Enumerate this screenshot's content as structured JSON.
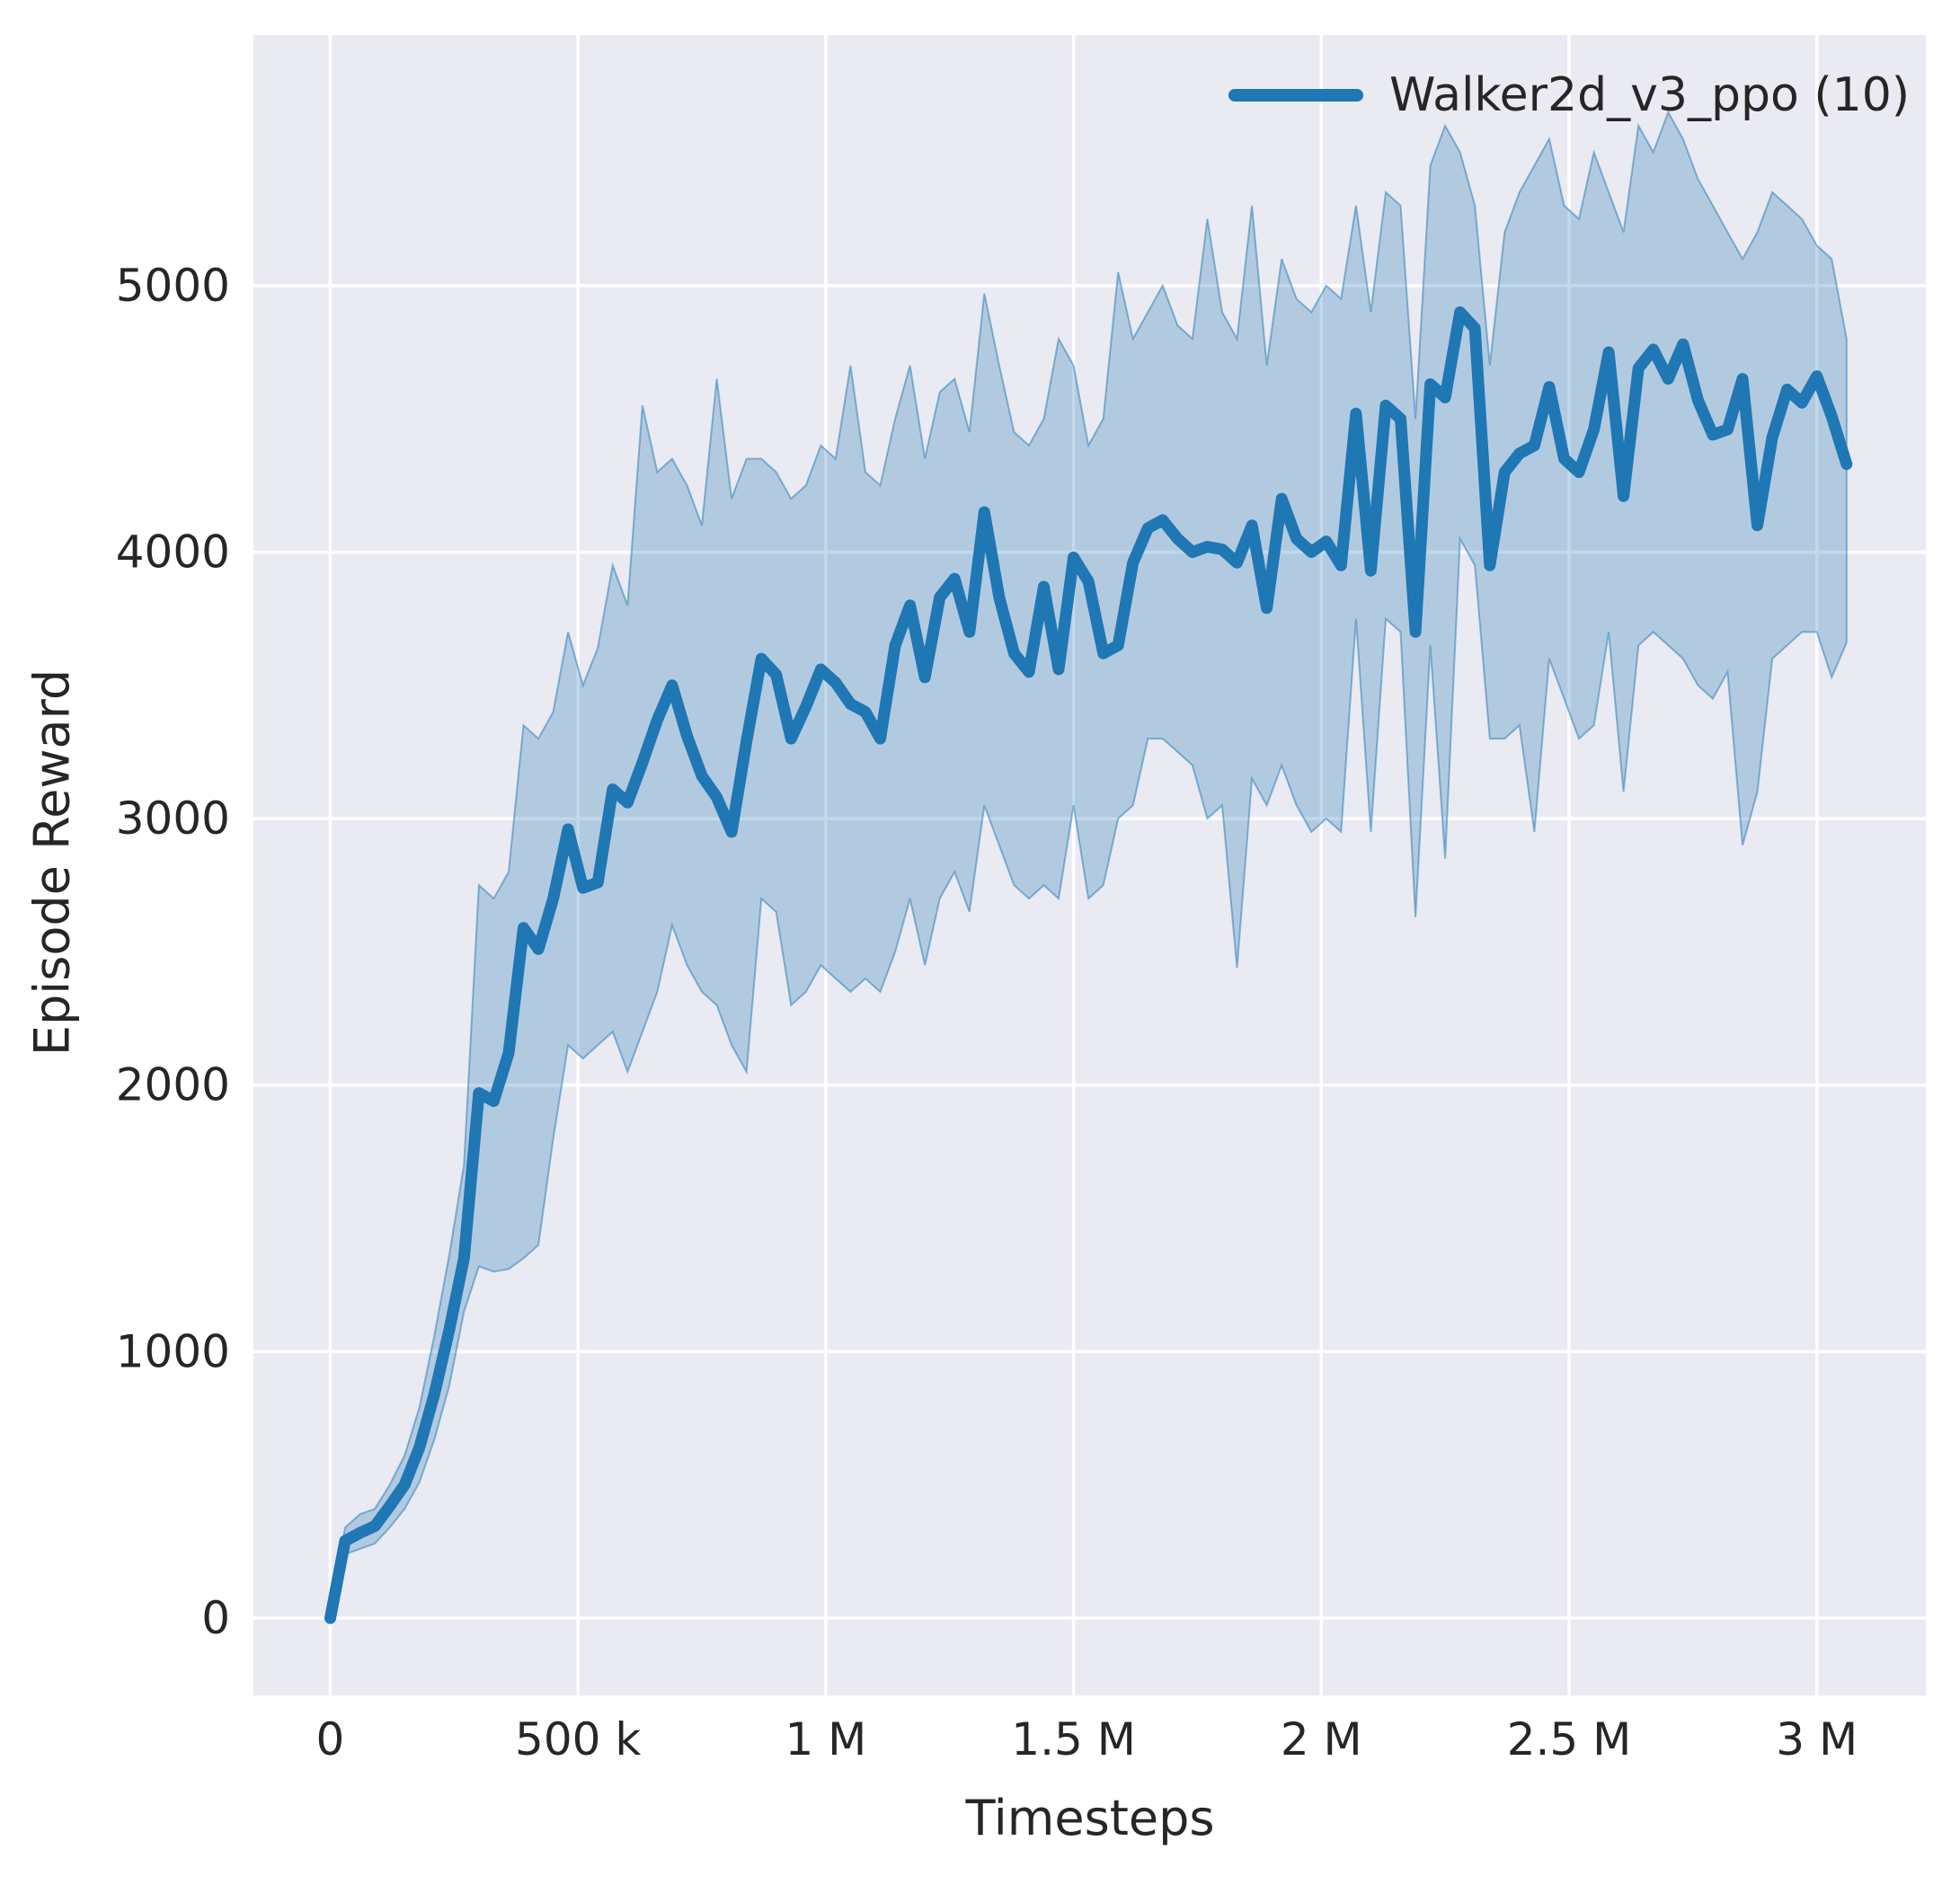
{
  "figure": {
    "background": "#ffffff",
    "text_color": "#262626"
  },
  "chart_data": {
    "type": "line",
    "title": "",
    "xlabel": "Timesteps",
    "ylabel": "Episode Reward",
    "grid": true,
    "background": "#eaeaf2",
    "grid_color": "#ffffff",
    "legend_position": "upper right",
    "xlim_m": [
      -0.155,
      3.22
    ],
    "ylim": [
      -290,
      5940
    ],
    "x_ticks": [
      {
        "value": 0,
        "label": "0"
      },
      {
        "value": 0.5,
        "label": "500 k"
      },
      {
        "value": 1,
        "label": "1 M"
      },
      {
        "value": 1.5,
        "label": "1.5 M"
      },
      {
        "value": 2,
        "label": "2 M"
      },
      {
        "value": 2.5,
        "label": "2.5 M"
      },
      {
        "value": 3,
        "label": "3 M"
      }
    ],
    "y_ticks": [
      {
        "value": 0,
        "label": "0"
      },
      {
        "value": 1000,
        "label": "1000"
      },
      {
        "value": 2000,
        "label": "2000"
      },
      {
        "value": 3000,
        "label": "3000"
      },
      {
        "value": 4000,
        "label": "4000"
      },
      {
        "value": 5000,
        "label": "5000"
      }
    ],
    "series": [
      {
        "name": "Walker2d_v3_ppo (10)",
        "color": "#1f77b4",
        "band_alpha": 0.28,
        "x_m": [
          0.0,
          0.03,
          0.06,
          0.09,
          0.12,
          0.15,
          0.18,
          0.21,
          0.24,
          0.27,
          0.3,
          0.33,
          0.36,
          0.39,
          0.42,
          0.45,
          0.48,
          0.51,
          0.54,
          0.57,
          0.6,
          0.63,
          0.66,
          0.69,
          0.72,
          0.75,
          0.78,
          0.81,
          0.84,
          0.87,
          0.9,
          0.93,
          0.96,
          0.99,
          1.02,
          1.05,
          1.08,
          1.11,
          1.14,
          1.17,
          1.2,
          1.23,
          1.26,
          1.29,
          1.32,
          1.35,
          1.38,
          1.41,
          1.44,
          1.47,
          1.5,
          1.53,
          1.56,
          1.59,
          1.62,
          1.65,
          1.68,
          1.71,
          1.74,
          1.77,
          1.8,
          1.83,
          1.86,
          1.89,
          1.92,
          1.95,
          1.98,
          2.01,
          2.04,
          2.07,
          2.1,
          2.13,
          2.16,
          2.19,
          2.22,
          2.25,
          2.28,
          2.31,
          2.34,
          2.37,
          2.4,
          2.43,
          2.46,
          2.49,
          2.52,
          2.55,
          2.58,
          2.61,
          2.64,
          2.67,
          2.7,
          2.73,
          2.76,
          2.79,
          2.82,
          2.85,
          2.88,
          2.91,
          2.94,
          2.97,
          3.0,
          3.03,
          3.06
        ],
        "mean": [
          0,
          290,
          320,
          345,
          420,
          500,
          640,
          840,
          1080,
          1350,
          1970,
          1940,
          2120,
          2590,
          2510,
          2700,
          2960,
          2740,
          2760,
          3110,
          3060,
          3210,
          3370,
          3500,
          3310,
          3160,
          3080,
          2950,
          3290,
          3600,
          3540,
          3300,
          3420,
          3560,
          3510,
          3430,
          3400,
          3300,
          3650,
          3800,
          3530,
          3830,
          3900,
          3700,
          4150,
          3830,
          3620,
          3550,
          3870,
          3560,
          3980,
          3890,
          3620,
          3650,
          3960,
          4090,
          4120,
          4050,
          4000,
          4020,
          4010,
          3960,
          4100,
          3790,
          4200,
          4050,
          4000,
          4040,
          3950,
          4520,
          3930,
          4550,
          4500,
          3700,
          4630,
          4580,
          4900,
          4840,
          3950,
          4300,
          4370,
          4400,
          4620,
          4350,
          4300,
          4460,
          4750,
          4210,
          4690,
          4760,
          4650,
          4780,
          4570,
          4440,
          4460,
          4650,
          4100,
          4430,
          4610,
          4560,
          4660,
          4510,
          4330
        ],
        "band_lower": [
          -20,
          240,
          260,
          280,
          340,
          410,
          510,
          670,
          870,
          1150,
          1320,
          1300,
          1310,
          1350,
          1400,
          1800,
          2150,
          2100,
          2150,
          2200,
          2050,
          2200,
          2350,
          2600,
          2450,
          2350,
          2300,
          2150,
          2050,
          2700,
          2650,
          2300,
          2350,
          2450,
          2400,
          2350,
          2400,
          2350,
          2500,
          2700,
          2450,
          2700,
          2800,
          2650,
          3050,
          2900,
          2750,
          2700,
          2750,
          2700,
          3050,
          2700,
          2750,
          3000,
          3050,
          3300,
          3300,
          3250,
          3200,
          3000,
          3050,
          2440,
          3150,
          3050,
          3200,
          3050,
          2950,
          3000,
          2950,
          3750,
          2950,
          3750,
          3700,
          2630,
          3650,
          2850,
          4050,
          3950,
          3300,
          3300,
          3350,
          2950,
          3600,
          3450,
          3300,
          3350,
          3700,
          3100,
          3650,
          3700,
          3650,
          3600,
          3500,
          3450,
          3550,
          2900,
          3100,
          3600,
          3650,
          3700,
          3700,
          3530,
          3660
        ],
        "band_upper": [
          20,
          340,
          390,
          410,
          500,
          610,
          790,
          1060,
          1360,
          1700,
          2750,
          2700,
          2800,
          3350,
          3300,
          3400,
          3700,
          3500,
          3640,
          3950,
          3800,
          4550,
          4300,
          4350,
          4250,
          4100,
          4650,
          4200,
          4350,
          4350,
          4300,
          4200,
          4250,
          4400,
          4350,
          4700,
          4300,
          4250,
          4500,
          4700,
          4350,
          4600,
          4650,
          4450,
          4970,
          4700,
          4450,
          4400,
          4500,
          4800,
          4700,
          4400,
          4500,
          5050,
          4800,
          4900,
          5000,
          4850,
          4800,
          5250,
          4900,
          4800,
          5300,
          4700,
          5100,
          4950,
          4900,
          5000,
          4950,
          5300,
          4900,
          5350,
          5300,
          4500,
          5450,
          5600,
          5500,
          5300,
          4700,
          5200,
          5350,
          5450,
          5550,
          5300,
          5250,
          5500,
          5350,
          5200,
          5600,
          5500,
          5650,
          5550,
          5400,
          5300,
          5200,
          5100,
          5200,
          5350,
          5300,
          5250,
          5150,
          5100,
          4800
        ]
      }
    ]
  }
}
